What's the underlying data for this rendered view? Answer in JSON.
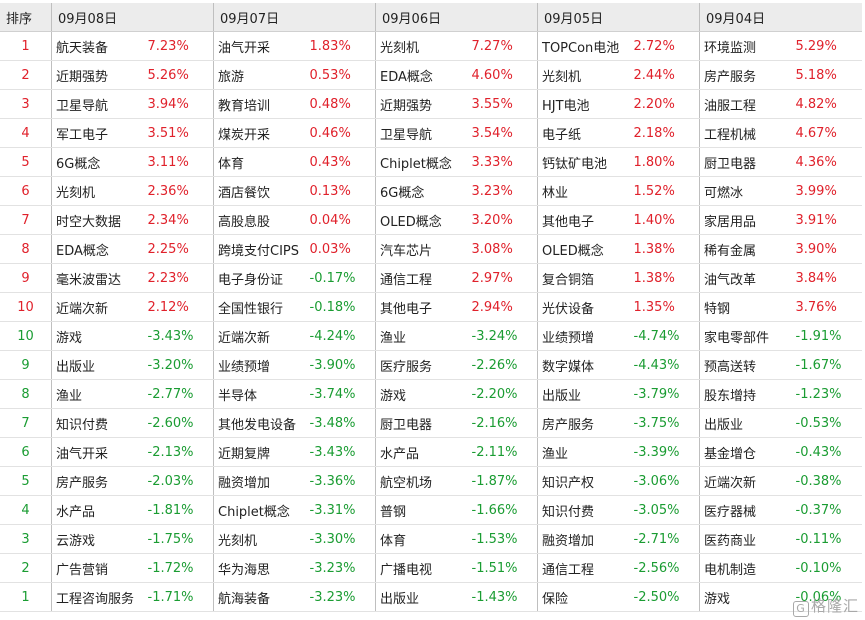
{
  "header": {
    "rank_label": "排序",
    "dates": [
      "09月08日",
      "09月07日",
      "09月06日",
      "09月05日",
      "09月04日"
    ]
  },
  "colors": {
    "up": "#e0212b",
    "down": "#1a9c32"
  },
  "rows": [
    {
      "rank": "1",
      "dir": "up",
      "cells": [
        [
          "航天装备",
          "7.23%"
        ],
        [
          "油气开采",
          "1.83%"
        ],
        [
          "光刻机",
          "7.27%"
        ],
        [
          "TOPCon电池",
          "2.72%"
        ],
        [
          "环境监测",
          "5.29%"
        ]
      ]
    },
    {
      "rank": "2",
      "dir": "up",
      "cells": [
        [
          "近期强势",
          "5.26%"
        ],
        [
          "旅游",
          "0.53%"
        ],
        [
          "EDA概念",
          "4.60%"
        ],
        [
          "光刻机",
          "2.44%"
        ],
        [
          "房产服务",
          "5.18%"
        ]
      ]
    },
    {
      "rank": "3",
      "dir": "up",
      "cells": [
        [
          "卫星导航",
          "3.94%"
        ],
        [
          "教育培训",
          "0.48%"
        ],
        [
          "近期强势",
          "3.55%"
        ],
        [
          "HJT电池",
          "2.20%"
        ],
        [
          "油服工程",
          "4.82%"
        ]
      ]
    },
    {
      "rank": "4",
      "dir": "up",
      "cells": [
        [
          "军工电子",
          "3.51%"
        ],
        [
          "煤炭开采",
          "0.46%"
        ],
        [
          "卫星导航",
          "3.54%"
        ],
        [
          "电子纸",
          "2.18%"
        ],
        [
          "工程机械",
          "4.67%"
        ]
      ]
    },
    {
      "rank": "5",
      "dir": "up",
      "cells": [
        [
          "6G概念",
          "3.11%"
        ],
        [
          "体育",
          "0.43%"
        ],
        [
          "Chiplet概念",
          "3.33%"
        ],
        [
          "钙钛矿电池",
          "1.80%"
        ],
        [
          "厨卫电器",
          "4.36%"
        ]
      ]
    },
    {
      "rank": "6",
      "dir": "up",
      "cells": [
        [
          "光刻机",
          "2.36%"
        ],
        [
          "酒店餐饮",
          "0.13%"
        ],
        [
          "6G概念",
          "3.23%"
        ],
        [
          "林业",
          "1.52%"
        ],
        [
          "可燃冰",
          "3.99%"
        ]
      ]
    },
    {
      "rank": "7",
      "dir": "up",
      "cells": [
        [
          "时空大数据",
          "2.34%"
        ],
        [
          "高股息股",
          "0.04%"
        ],
        [
          "OLED概念",
          "3.20%"
        ],
        [
          "其他电子",
          "1.40%"
        ],
        [
          "家居用品",
          "3.91%"
        ]
      ]
    },
    {
      "rank": "8",
      "dir": "up",
      "cells": [
        [
          "EDA概念",
          "2.25%"
        ],
        [
          "跨境支付CIPS",
          "0.03%"
        ],
        [
          "汽车芯片",
          "3.08%"
        ],
        [
          "OLED概念",
          "1.38%"
        ],
        [
          "稀有金属",
          "3.90%"
        ]
      ]
    },
    {
      "rank": "9",
      "dir": "up",
      "cells": [
        [
          "毫米波雷达",
          "2.23%"
        ],
        [
          "电子身份证",
          "-0.17%"
        ],
        [
          "通信工程",
          "2.97%"
        ],
        [
          "复合铜箔",
          "1.38%"
        ],
        [
          "油气改革",
          "3.84%"
        ]
      ]
    },
    {
      "rank": "10",
      "dir": "up",
      "cells": [
        [
          "近端次新",
          "2.12%"
        ],
        [
          "全国性银行",
          "-0.18%"
        ],
        [
          "其他电子",
          "2.94%"
        ],
        [
          "光伏设备",
          "1.35%"
        ],
        [
          "特钢",
          "3.76%"
        ]
      ]
    },
    {
      "rank": "10",
      "dir": "down",
      "cells": [
        [
          "游戏",
          "-3.43%"
        ],
        [
          "近端次新",
          "-4.24%"
        ],
        [
          "渔业",
          "-3.24%"
        ],
        [
          "业绩预增",
          "-4.74%"
        ],
        [
          "家电零部件",
          "-1.91%"
        ]
      ]
    },
    {
      "rank": "9",
      "dir": "down",
      "cells": [
        [
          "出版业",
          "-3.20%"
        ],
        [
          "业绩预增",
          "-3.90%"
        ],
        [
          "医疗服务",
          "-2.26%"
        ],
        [
          "数字媒体",
          "-4.43%"
        ],
        [
          "预高送转",
          "-1.67%"
        ]
      ]
    },
    {
      "rank": "8",
      "dir": "down",
      "cells": [
        [
          "渔业",
          "-2.77%"
        ],
        [
          "半导体",
          "-3.74%"
        ],
        [
          "游戏",
          "-2.20%"
        ],
        [
          "出版业",
          "-3.79%"
        ],
        [
          "股东增持",
          "-1.23%"
        ]
      ]
    },
    {
      "rank": "7",
      "dir": "down",
      "cells": [
        [
          "知识付费",
          "-2.60%"
        ],
        [
          "其他发电设备",
          "-3.48%"
        ],
        [
          "厨卫电器",
          "-2.16%"
        ],
        [
          "房产服务",
          "-3.75%"
        ],
        [
          "出版业",
          "-0.53%"
        ]
      ]
    },
    {
      "rank": "6",
      "dir": "down",
      "cells": [
        [
          "油气开采",
          "-2.13%"
        ],
        [
          "近期复牌",
          "-3.43%"
        ],
        [
          "水产品",
          "-2.11%"
        ],
        [
          "渔业",
          "-3.39%"
        ],
        [
          "基金增仓",
          "-0.43%"
        ]
      ]
    },
    {
      "rank": "5",
      "dir": "down",
      "cells": [
        [
          "房产服务",
          "-2.03%"
        ],
        [
          "融资增加",
          "-3.36%"
        ],
        [
          "航空机场",
          "-1.87%"
        ],
        [
          "知识产权",
          "-3.06%"
        ],
        [
          "近端次新",
          "-0.38%"
        ]
      ]
    },
    {
      "rank": "4",
      "dir": "down",
      "cells": [
        [
          "水产品",
          "-1.81%"
        ],
        [
          "Chiplet概念",
          "-3.31%"
        ],
        [
          "普钢",
          "-1.66%"
        ],
        [
          "知识付费",
          "-3.05%"
        ],
        [
          "医疗器械",
          "-0.37%"
        ]
      ]
    },
    {
      "rank": "3",
      "dir": "down",
      "cells": [
        [
          "云游戏",
          "-1.75%"
        ],
        [
          "光刻机",
          "-3.30%"
        ],
        [
          "体育",
          "-1.53%"
        ],
        [
          "融资增加",
          "-2.71%"
        ],
        [
          "医药商业",
          "-0.11%"
        ]
      ]
    },
    {
      "rank": "2",
      "dir": "down",
      "cells": [
        [
          "广告营销",
          "-1.72%"
        ],
        [
          "华为海思",
          "-3.23%"
        ],
        [
          "广播电视",
          "-1.51%"
        ],
        [
          "通信工程",
          "-2.56%"
        ],
        [
          "电机制造",
          "-0.10%"
        ]
      ]
    },
    {
      "rank": "1",
      "dir": "down",
      "cells": [
        [
          "工程咨询服务",
          "-1.71%"
        ],
        [
          "航海装备",
          "-3.23%"
        ],
        [
          "出版业",
          "-1.43%"
        ],
        [
          "保险",
          "-2.50%"
        ],
        [
          "游戏",
          "-0.06%"
        ]
      ]
    }
  ],
  "watermark": {
    "icon": "G",
    "text": "格隆汇"
  }
}
